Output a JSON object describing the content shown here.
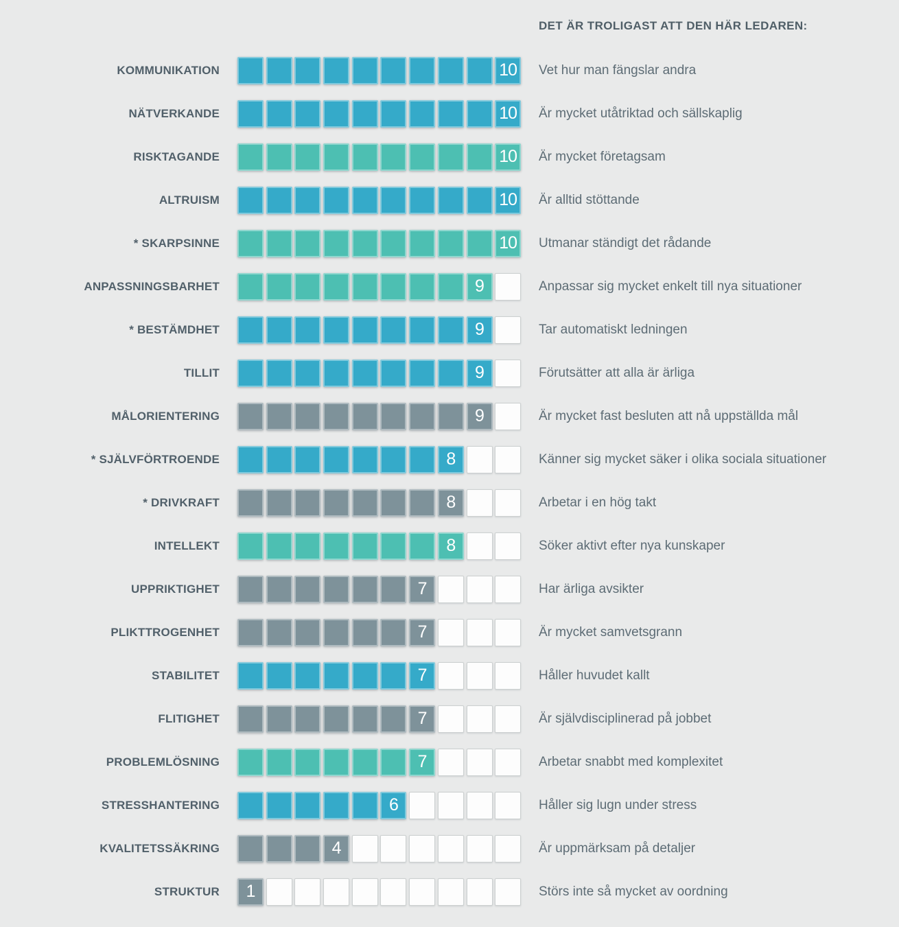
{
  "header": {
    "title": "DET ÄR TROLIGAST ATT DEN HÄR LEDAREN:"
  },
  "colors": {
    "blue": "#35aac9",
    "green": "#4dbfb2",
    "gray": "#7e929a",
    "empty": "#fdfdfd",
    "background": "#e9eaea",
    "label_text": "#51606a",
    "description_text": "#5d6c75",
    "value_text": "#ffffff"
  },
  "scale": {
    "min": 1,
    "max": 10
  },
  "rows": [
    {
      "label": "KOMMUNIKATION",
      "value": 10,
      "color": "blue",
      "description": "Vet hur man fängslar andra"
    },
    {
      "label": "NÄTVERKANDE",
      "value": 10,
      "color": "blue",
      "description": "Är mycket utåtriktad och sällskaplig"
    },
    {
      "label": "RISKTAGANDE",
      "value": 10,
      "color": "green",
      "description": "Är mycket företagsam"
    },
    {
      "label": "ALTRUISM",
      "value": 10,
      "color": "blue",
      "description": "Är alltid stöttande"
    },
    {
      "label": "* SKARPSINNE",
      "value": 10,
      "color": "green",
      "description": "Utmanar ständigt det rådande"
    },
    {
      "label": "ANPASSNINGSBARHET",
      "value": 9,
      "color": "green",
      "description": "Anpassar sig mycket enkelt till nya situationer"
    },
    {
      "label": "* BESTÄMDHET",
      "value": 9,
      "color": "blue",
      "description": "Tar automatiskt ledningen"
    },
    {
      "label": "TILLIT",
      "value": 9,
      "color": "blue",
      "description": "Förutsätter att alla är ärliga"
    },
    {
      "label": "MÅLORIENTERING",
      "value": 9,
      "color": "gray",
      "description": "Är mycket fast besluten att nå uppställda mål"
    },
    {
      "label": "* SJÄLVFÖRTROENDE",
      "value": 8,
      "color": "blue",
      "description": "Känner sig mycket säker i olika sociala situationer"
    },
    {
      "label": "* DRIVKRAFT",
      "value": 8,
      "color": "gray",
      "description": "Arbetar i en hög takt"
    },
    {
      "label": "INTELLEKT",
      "value": 8,
      "color": "green",
      "description": "Söker aktivt efter nya kunskaper"
    },
    {
      "label": "UPPRIKTIGHET",
      "value": 7,
      "color": "gray",
      "description": "Har ärliga avsikter"
    },
    {
      "label": "PLIKTTROGENHET",
      "value": 7,
      "color": "gray",
      "description": "Är mycket samvetsgrann"
    },
    {
      "label": "STABILITET",
      "value": 7,
      "color": "blue",
      "description": "Håller huvudet kallt"
    },
    {
      "label": "FLITIGHET",
      "value": 7,
      "color": "gray",
      "description": "Är självdisciplinerad på jobbet"
    },
    {
      "label": "PROBLEMLÖSNING",
      "value": 7,
      "color": "green",
      "description": "Arbetar snabbt med komplexitet"
    },
    {
      "label": "STRESSHANTERING",
      "value": 6,
      "color": "blue",
      "description": "Håller sig lugn under stress"
    },
    {
      "label": "KVALITETSSÄKRING",
      "value": 4,
      "color": "gray",
      "description": "Är uppmärksam på detaljer"
    },
    {
      "label": "STRUKTUR",
      "value": 1,
      "color": "gray",
      "description": "Störs inte så mycket av oordning"
    }
  ],
  "chart_data": {
    "type": "bar",
    "title": "DET ÄR TROLIGAST ATT DEN HÄR LEDAREN:",
    "orientation": "horizontal",
    "xlim": [
      0,
      10
    ],
    "grid": false,
    "legend": false,
    "categories": [
      "KOMMUNIKATION",
      "NÄTVERKANDE",
      "RISKTAGANDE",
      "ALTRUISM",
      "* SKARPSINNE",
      "ANPASSNINGSBARHET",
      "* BESTÄMDHET",
      "TILLIT",
      "MÅLORIENTERING",
      "* SJÄLVFÖRTROENDE",
      "* DRIVKRAFT",
      "INTELLEKT",
      "UPPRIKTIGHET",
      "PLIKTTROGENHET",
      "STABILITET",
      "FLITIGHET",
      "PROBLEMLÖSNING",
      "STRESSHANTERING",
      "KVALITETSSÄKRING",
      "STRUKTUR"
    ],
    "values": [
      10,
      10,
      10,
      10,
      10,
      9,
      9,
      9,
      9,
      8,
      8,
      8,
      7,
      7,
      7,
      7,
      7,
      6,
      4,
      1
    ],
    "bar_colors": [
      "#35aac9",
      "#35aac9",
      "#4dbfb2",
      "#35aac9",
      "#4dbfb2",
      "#4dbfb2",
      "#35aac9",
      "#35aac9",
      "#7e929a",
      "#35aac9",
      "#7e929a",
      "#4dbfb2",
      "#7e929a",
      "#7e929a",
      "#35aac9",
      "#7e929a",
      "#4dbfb2",
      "#35aac9",
      "#7e929a",
      "#7e929a"
    ],
    "annotations": [
      "Vet hur man fängslar andra",
      "Är mycket utåtriktad och sällskaplig",
      "Är mycket företagsam",
      "Är alltid stöttande",
      "Utmanar ständigt det rådande",
      "Anpassar sig mycket enkelt till nya situationer",
      "Tar automatiskt ledningen",
      "Förutsätter att alla är ärliga",
      "Är mycket fast besluten att nå uppställda mål",
      "Känner sig mycket säker i olika sociala situationer",
      "Arbetar i en hög takt",
      "Söker aktivt efter nya kunskaper",
      "Har ärliga avsikter",
      "Är mycket samvetsgrann",
      "Håller huvudet kallt",
      "Är självdisciplinerad på jobbet",
      "Arbetar snabbt med komplexitet",
      "Håller sig lugn under stress",
      "Är uppmärksam på detaljer",
      "Störs inte så mycket av oordning"
    ]
  }
}
